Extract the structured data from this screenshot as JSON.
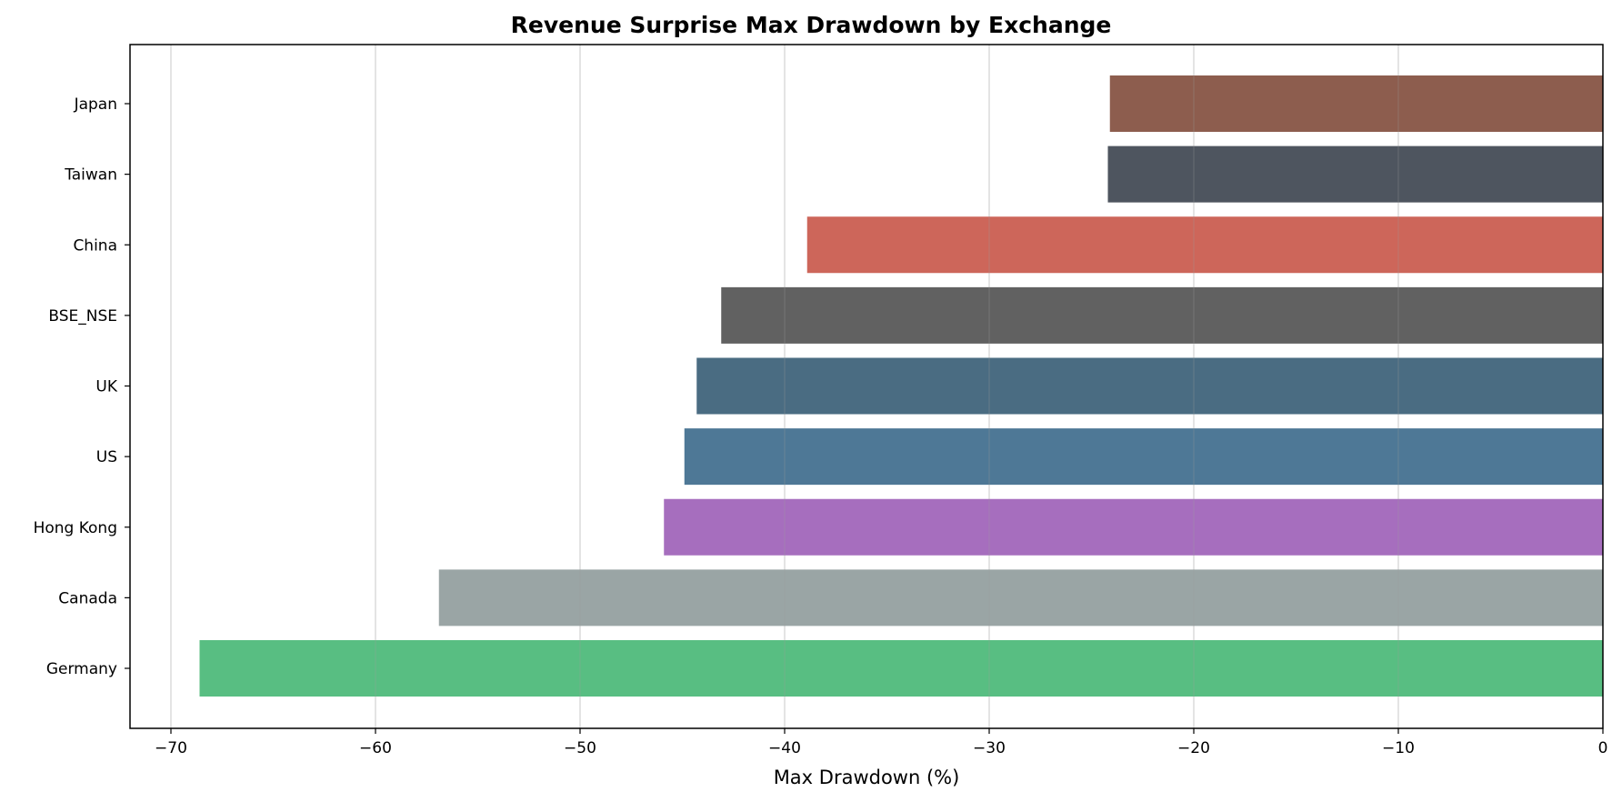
{
  "chart_data": {
    "type": "bar",
    "orientation": "horizontal",
    "title": "Revenue Surprise Max Drawdown by Exchange",
    "xlabel": "Max Drawdown (%)",
    "ylabel": "",
    "xlim": [
      -72,
      0
    ],
    "xticks": [
      -70,
      -60,
      -50,
      -40,
      -30,
      -20,
      -10,
      0
    ],
    "xtick_labels": [
      "−70",
      "−60",
      "−50",
      "−40",
      "−30",
      "−20",
      "−10",
      "0"
    ],
    "grid": "x",
    "categories": [
      "Japan",
      "Taiwan",
      "China",
      "BSE_NSE",
      "UK",
      "US",
      "Hong Kong",
      "Canada",
      "Germany"
    ],
    "values": [
      -24.1,
      -24.2,
      -38.9,
      -43.1,
      -44.3,
      -44.9,
      -45.9,
      -56.9,
      -68.6
    ],
    "colors": [
      "#8b5a4a",
      "#4a525c",
      "#cc6357",
      "#5e5e5e",
      "#46697f",
      "#4a7594",
      "#a46bbd",
      "#98a3a3",
      "#55bd80"
    ]
  }
}
